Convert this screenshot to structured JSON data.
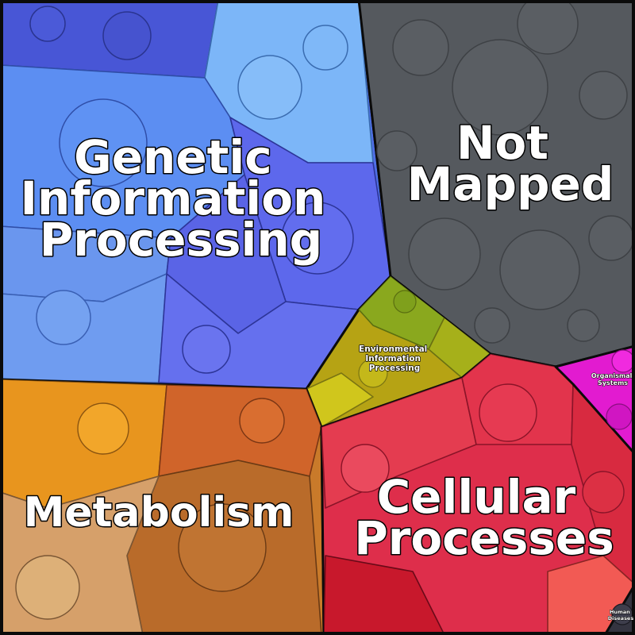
{
  "categories": [
    {
      "key": "genetic",
      "label_lines": [
        "Genetic",
        "Information",
        "Processing"
      ],
      "color": "#4f6fe6"
    },
    {
      "key": "not_mapped",
      "label_lines": [
        "Not",
        "Mapped"
      ],
      "color": "#55595e"
    },
    {
      "key": "environmental",
      "label_lines": [
        "Environmental",
        "Information",
        "Processing"
      ],
      "color": "#b6a314"
    },
    {
      "key": "metabolism",
      "label_lines": [
        "Metabolism"
      ],
      "color": "#c97a2a"
    },
    {
      "key": "cellular",
      "label_lines": [
        "Cellular",
        "Processes"
      ],
      "color": "#de2e4b"
    },
    {
      "key": "organismal",
      "label_lines": [
        "Organismal",
        "Systems"
      ],
      "color": "#e21bd0"
    },
    {
      "key": "human",
      "label_lines": [
        "Human",
        "Diseases"
      ],
      "color": "#343440"
    }
  ]
}
